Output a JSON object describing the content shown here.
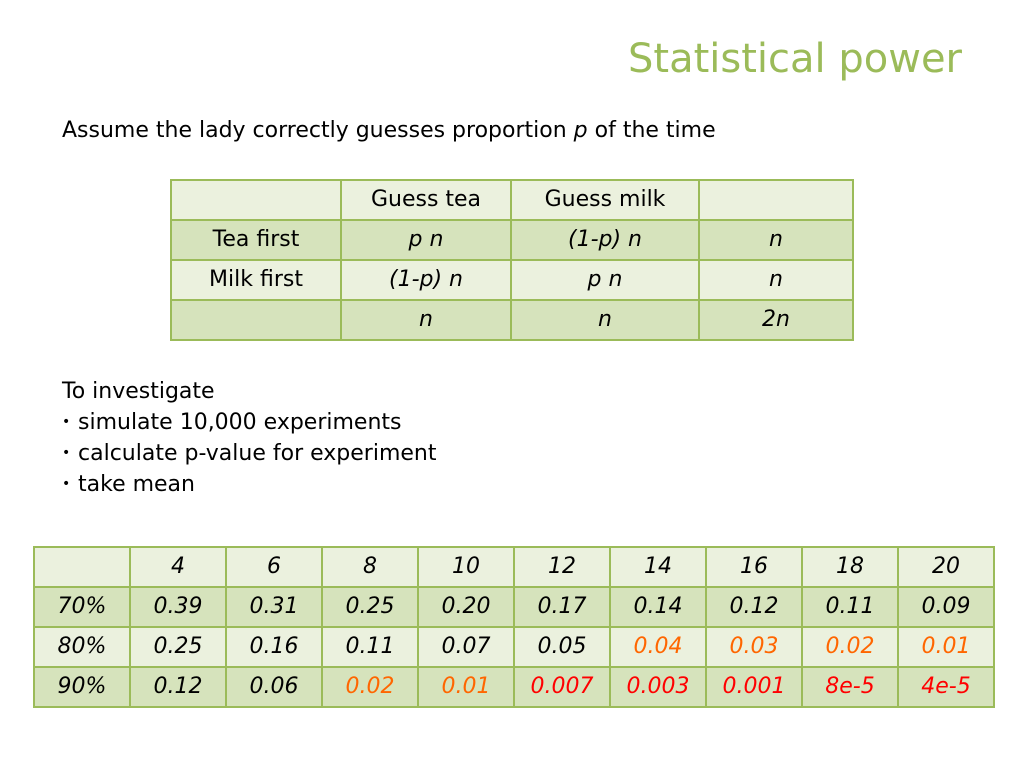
{
  "title": "Statistical power",
  "intro": {
    "before": "Assume the lady correctly guesses proportion ",
    "var": "p",
    "after": " of the time"
  },
  "contingency": {
    "header": [
      "",
      "Guess tea",
      "Guess milk",
      ""
    ],
    "rows": [
      [
        "Tea first",
        "p n",
        "(1-p) n",
        "n"
      ],
      [
        "Milk first",
        "(1-p) n",
        "p n",
        "n"
      ],
      [
        "",
        "n",
        "n",
        "2n"
      ]
    ]
  },
  "investigate": {
    "heading": "To investigate",
    "bullets": [
      "simulate 10,000 experiments",
      "calculate p-value for experiment",
      "take mean"
    ]
  },
  "power_table": {
    "header": [
      "",
      "4",
      "6",
      "8",
      "10",
      "12",
      "14",
      "16",
      "18",
      "20"
    ],
    "rows": [
      {
        "label": "70%",
        "values": [
          "0.39",
          "0.31",
          "0.25",
          "0.20",
          "0.17",
          "0.14",
          "0.12",
          "0.11",
          "0.09"
        ],
        "colors": [
          "black",
          "black",
          "black",
          "black",
          "black",
          "black",
          "black",
          "black",
          "black"
        ]
      },
      {
        "label": "80%",
        "values": [
          "0.25",
          "0.16",
          "0.11",
          "0.07",
          "0.05",
          "0.04",
          "0.03",
          "0.02",
          "0.01"
        ],
        "colors": [
          "black",
          "black",
          "black",
          "black",
          "black",
          "orange",
          "orange",
          "orange",
          "orange"
        ]
      },
      {
        "label": "90%",
        "values": [
          "0.12",
          "0.06",
          "0.02",
          "0.01",
          "0.007",
          "0.003",
          "0.001",
          "8e-5",
          "4e-5"
        ],
        "colors": [
          "black",
          "black",
          "orange",
          "orange",
          "red",
          "red",
          "red",
          "red",
          "red"
        ]
      }
    ]
  },
  "colors": {
    "accent": "#9BBB59",
    "row_light": "#EBF1DE",
    "row_dark": "#D6E3BC",
    "orange": "#FF6600",
    "red": "#FF0000"
  }
}
